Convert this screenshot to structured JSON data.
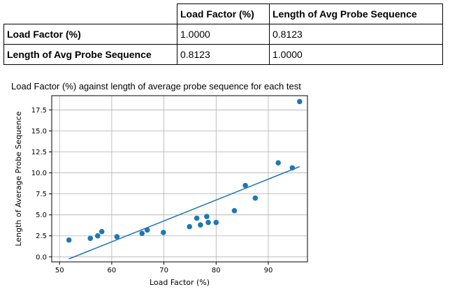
{
  "table": {
    "headers": [
      "",
      "Load Factor (%)",
      "Length of Avg Probe Sequence"
    ],
    "rows": [
      {
        "label": "Load Factor (%)",
        "values": [
          "1.0000",
          "0.8123"
        ]
      },
      {
        "label": "Length of Avg Probe Sequence",
        "values": [
          "0.8123",
          "1.0000"
        ]
      }
    ]
  },
  "chart_data": {
    "type": "scatter",
    "title": "Load Factor (%) against length of average probe sequence for each test",
    "xlabel": "Load Factor (%)",
    "ylabel": "Length of Average Probe Sequence",
    "xlim": [
      48.5,
      97.5
    ],
    "ylim": [
      -0.6,
      19.2
    ],
    "xticks": [
      50,
      60,
      70,
      80,
      90
    ],
    "yticks": [
      0.0,
      2.5,
      5.0,
      7.5,
      10.0,
      12.5,
      15.0,
      17.5
    ],
    "xtick_labels": [
      "50",
      "60",
      "70",
      "80",
      "90"
    ],
    "ytick_labels": [
      "0.0",
      "2.5",
      "5.0",
      "7.5",
      "10.0",
      "12.5",
      "15.0",
      "17.5"
    ],
    "grid": true,
    "color": "#1f77b4",
    "points": {
      "x": [
        51.8,
        55.9,
        57.3,
        58.1,
        61.0,
        65.8,
        66.8,
        69.9,
        74.9,
        76.3,
        77.0,
        78.2,
        78.5,
        80.0,
        83.5,
        85.6,
        87.5,
        91.9,
        94.6,
        96.0
      ],
      "y": [
        2.0,
        2.2,
        2.5,
        3.0,
        2.4,
        2.8,
        3.2,
        2.9,
        3.6,
        4.6,
        3.8,
        4.8,
        4.1,
        4.1,
        5.5,
        8.5,
        7.0,
        11.2,
        10.6,
        18.5
      ]
    },
    "trendline": {
      "x": [
        51.8,
        96.0
      ],
      "y": [
        -0.25,
        10.75
      ]
    }
  }
}
